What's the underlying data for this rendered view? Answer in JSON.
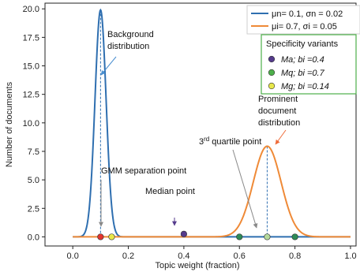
{
  "chart_data": {
    "type": "line",
    "xlabel": "Topic weight (fraction)",
    "ylabel": "Number of documents",
    "xlim": [
      -0.1,
      1.02
    ],
    "ylim": [
      -0.8,
      20.5
    ],
    "x_ticks": [
      "0.0",
      "0.2",
      "0.4",
      "0.6",
      "0.8",
      "1.0"
    ],
    "y_ticks": [
      "0.0",
      "2.5",
      "5.0",
      "7.5",
      "10.0",
      "12.5",
      "15.0",
      "17.5",
      "20.0"
    ],
    "grid": false,
    "legend_position": "top-right",
    "series": [
      {
        "name": "μn= 0.1, σn = 0.02",
        "mean": 0.1,
        "sigma": 0.02,
        "peak": 19.9,
        "color": "#2f6fb0"
      },
      {
        "name": "μi= 0.7, σi = 0.05",
        "mean": 0.7,
        "sigma": 0.05,
        "peak": 7.95,
        "color": "#ef8a37"
      }
    ],
    "specificity_variants": {
      "title": "Specificity variants",
      "entries": [
        {
          "label": "Ma; bi =0.4",
          "x": 0.4,
          "color": "#553b8c"
        },
        {
          "label": "Mq; bi =0.7",
          "x": 0.7,
          "color": "#4daf4a"
        },
        {
          "label": "Mg; bi =0.14",
          "x": 0.14,
          "color": "#e8e84a"
        }
      ]
    },
    "points": [
      {
        "x": 0.1,
        "y": 0.0,
        "color": "#e3342f"
      },
      {
        "x": 0.14,
        "y": 0.0,
        "color": "#e8e84a"
      },
      {
        "x": 0.4,
        "y": 0.25,
        "color": "#553b8c"
      },
      {
        "x": 0.6,
        "y": 0.0,
        "color": "#2e8b57"
      },
      {
        "x": 0.7,
        "y": 0.0,
        "color": "#b5d99c"
      },
      {
        "x": 0.8,
        "y": 0.0,
        "color": "#2e8b57"
      }
    ],
    "annotations": {
      "background": [
        "Background",
        "distribution"
      ],
      "gmm": "GMM separation point",
      "median": "Median point",
      "quartile_prefix": "3",
      "quartile_sup": "rd",
      "quartile_suffix": " quartile point",
      "prominent": [
        "Prominent",
        "document",
        "distribution"
      ]
    }
  }
}
